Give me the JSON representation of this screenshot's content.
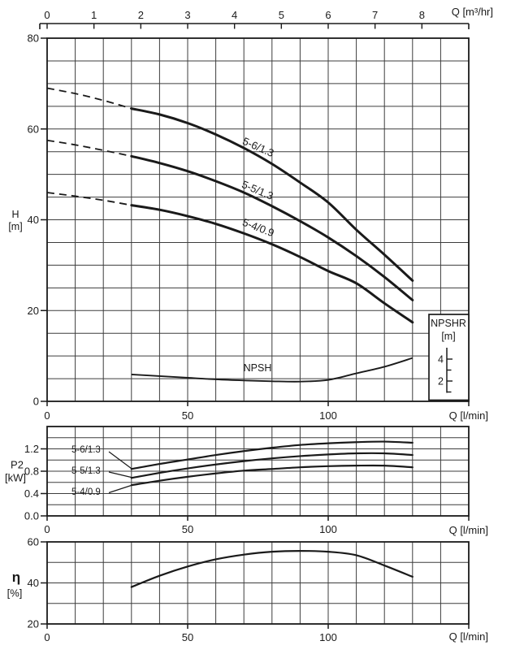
{
  "colors": {
    "ink": "#1a1a1a",
    "grid": "#3d3d3d",
    "background": "#ffffff"
  },
  "chart_data": [
    {
      "id": "head-curves",
      "type": "line",
      "title": "Pump head curves",
      "ylabel": "H",
      "ylabel_unit": "[m]",
      "xlabel": "Q [l/min]",
      "x2label": "Q [m³/hr]",
      "xlim": [
        0,
        150
      ],
      "ylim": [
        0,
        80
      ],
      "grid": {
        "x_step": 10,
        "y_step": 5
      },
      "x_tick_values": [
        0,
        50,
        100
      ],
      "x_tick_labels": [
        "0",
        "50",
        "100"
      ],
      "x_tick_marks": [
        0,
        50,
        100,
        150
      ],
      "x2_tick_values": [
        0,
        1,
        2,
        3,
        4,
        5,
        6,
        7,
        8
      ],
      "x2_tick_labels": [
        "0",
        "1",
        "2",
        "3",
        "4",
        "5",
        "6",
        "7",
        "8"
      ],
      "y_tick_values": [
        0,
        20,
        40,
        60,
        80
      ],
      "y_tick_labels": [
        "0",
        "20",
        "40",
        "60",
        "80"
      ],
      "series": [
        {
          "name": "5-6/1.3",
          "dash_until": 30,
          "x": [
            0,
            10,
            20,
            30,
            40,
            50,
            60,
            70,
            80,
            90,
            100,
            110,
            120,
            130
          ],
          "y": [
            69,
            67.8,
            66.3,
            64.5,
            63.2,
            61.3,
            58.8,
            55.8,
            52.3,
            48.2,
            43.8,
            37.8,
            32.3,
            26.6
          ]
        },
        {
          "name": "5-5/1.3",
          "dash_until": 30,
          "x": [
            0,
            10,
            20,
            30,
            40,
            50,
            60,
            70,
            80,
            90,
            100,
            110,
            120,
            130
          ],
          "y": [
            57.5,
            56.5,
            55.3,
            54,
            52.5,
            50.7,
            48.5,
            46,
            43,
            39.7,
            36.1,
            32,
            27.4,
            22.3
          ]
        },
        {
          "name": "5-4/0.9",
          "dash_until": 30,
          "x": [
            0,
            10,
            20,
            30,
            40,
            50,
            60,
            70,
            80,
            90,
            100,
            110,
            120,
            130
          ],
          "y": [
            46,
            45.2,
            44.3,
            43.2,
            42.2,
            40.8,
            39.1,
            37,
            34.6,
            31.8,
            28.7,
            26,
            21.6,
            17.4
          ]
        }
      ],
      "npsh_series": {
        "name": "NPSH",
        "x": [
          30,
          40,
          50,
          60,
          70,
          80,
          90,
          100,
          110,
          120,
          130
        ],
        "y": [
          2.6,
          2.45,
          2.3,
          2.15,
          2.05,
          1.98,
          1.95,
          2.1,
          2.7,
          3.3,
          4.1
        ]
      },
      "secondary_axis": {
        "title": "NPSHR",
        "unit": "[m]",
        "range": [
          1,
          5
        ],
        "tick_values": [
          1,
          2,
          3,
          4
        ],
        "labeled_tick_values": [
          2,
          4
        ],
        "labeled_tick_labels": [
          "2",
          "4"
        ]
      }
    },
    {
      "id": "power-curves",
      "type": "line",
      "title": "Pump input power curves",
      "ylabel": "P2",
      "ylabel_unit": "[kW]",
      "xlabel": "Q [l/min]",
      "xlim": [
        0,
        150
      ],
      "ylim": [
        0,
        1.6
      ],
      "grid": {
        "x_step": 10,
        "y_step": 0.2
      },
      "x_tick_values": [
        0,
        50,
        100
      ],
      "x_tick_labels": [
        "0",
        "50",
        "100"
      ],
      "x_tick_marks": [
        0,
        50,
        100,
        150
      ],
      "y_tick_values": [
        0,
        0.4,
        0.8,
        1.2
      ],
      "y_tick_labels": [
        "0.0",
        "0.4",
        "0.8",
        "1.2"
      ],
      "series": [
        {
          "name": "5-6/1.3",
          "x": [
            30,
            40,
            50,
            60,
            70,
            80,
            90,
            100,
            110,
            120,
            130
          ],
          "y": [
            0.84,
            0.93,
            1.01,
            1.09,
            1.16,
            1.22,
            1.27,
            1.3,
            1.32,
            1.33,
            1.31
          ]
        },
        {
          "name": "5-5/1.3",
          "x": [
            30,
            40,
            50,
            60,
            70,
            80,
            90,
            100,
            110,
            120,
            130
          ],
          "y": [
            0.68,
            0.77,
            0.85,
            0.92,
            0.98,
            1.03,
            1.07,
            1.1,
            1.12,
            1.12,
            1.09
          ]
        },
        {
          "name": "5-4/0.9",
          "x": [
            30,
            40,
            50,
            60,
            70,
            80,
            90,
            100,
            110,
            120,
            130
          ],
          "y": [
            0.55,
            0.63,
            0.7,
            0.76,
            0.81,
            0.84,
            0.87,
            0.89,
            0.9,
            0.9,
            0.87
          ]
        }
      ]
    },
    {
      "id": "efficiency-curve",
      "type": "line",
      "title": "Pump efficiency curve",
      "ylabel": "η",
      "ylabel_unit": "[%]",
      "xlabel": "Q [l/min]",
      "xlim": [
        0,
        150
      ],
      "ylim": [
        20,
        60
      ],
      "grid": {
        "x_step": 10,
        "y_step": 10
      },
      "x_tick_values": [
        0,
        50,
        100
      ],
      "x_tick_labels": [
        "0",
        "50",
        "100"
      ],
      "x_tick_marks": [
        0,
        50,
        100,
        150
      ],
      "y_tick_values": [
        20,
        40,
        60
      ],
      "y_tick_labels": [
        "20",
        "40",
        "60"
      ],
      "series": [
        {
          "name": "η",
          "x": [
            30,
            40,
            50,
            60,
            70,
            80,
            90,
            100,
            110,
            120,
            130
          ],
          "y": [
            38,
            43.5,
            48,
            51.5,
            53.8,
            55.2,
            55.6,
            55.2,
            53.5,
            48.5,
            43
          ]
        }
      ]
    }
  ]
}
